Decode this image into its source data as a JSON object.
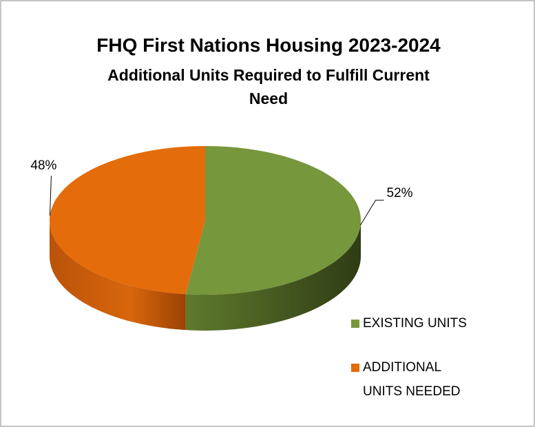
{
  "chart_data": {
    "type": "pie",
    "title": "FHQ First Nations Housing 2023-2024",
    "subtitle": "Additional Units Required to Fulfill Current Need",
    "categories": [
      "EXISTING UNITS",
      "ADDITIONAL UNITS NEEDED"
    ],
    "values": [
      52,
      48
    ],
    "value_labels": [
      "52%",
      "48%"
    ],
    "colors": [
      "#77973d",
      "#e46c0a"
    ],
    "legend": "right"
  }
}
